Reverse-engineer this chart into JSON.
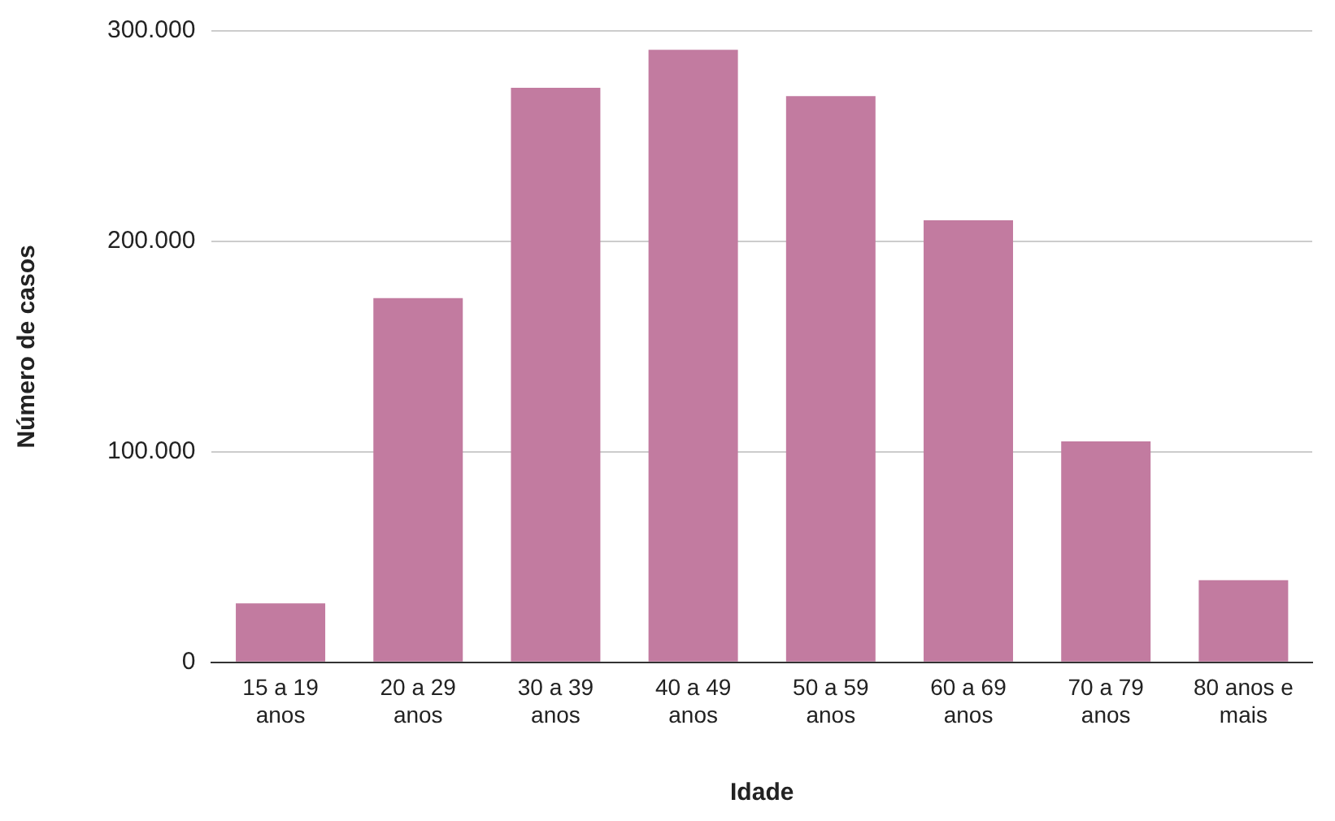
{
  "chart_data": {
    "type": "bar",
    "xlabel": "Idade",
    "ylabel": "Número de casos",
    "categories": [
      "15 a 19 anos",
      "20 a 29 anos",
      "30 a 39 anos",
      "40 a 49 anos",
      "50 a 59 anos",
      "60 a 69 anos",
      "70 a 79 anos",
      "80 anos e mais"
    ],
    "values": [
      28000,
      173000,
      273000,
      291000,
      269000,
      210000,
      105000,
      39000
    ],
    "color": "#c27ba0",
    "ylim": [
      0,
      300000
    ],
    "yticks": [
      {
        "value": 0,
        "label": "0"
      },
      {
        "value": 100000,
        "label": "100.000"
      },
      {
        "value": 200000,
        "label": "200.000"
      },
      {
        "value": 300000,
        "label": "300.000"
      }
    ],
    "grid": "y",
    "legend": false
  }
}
